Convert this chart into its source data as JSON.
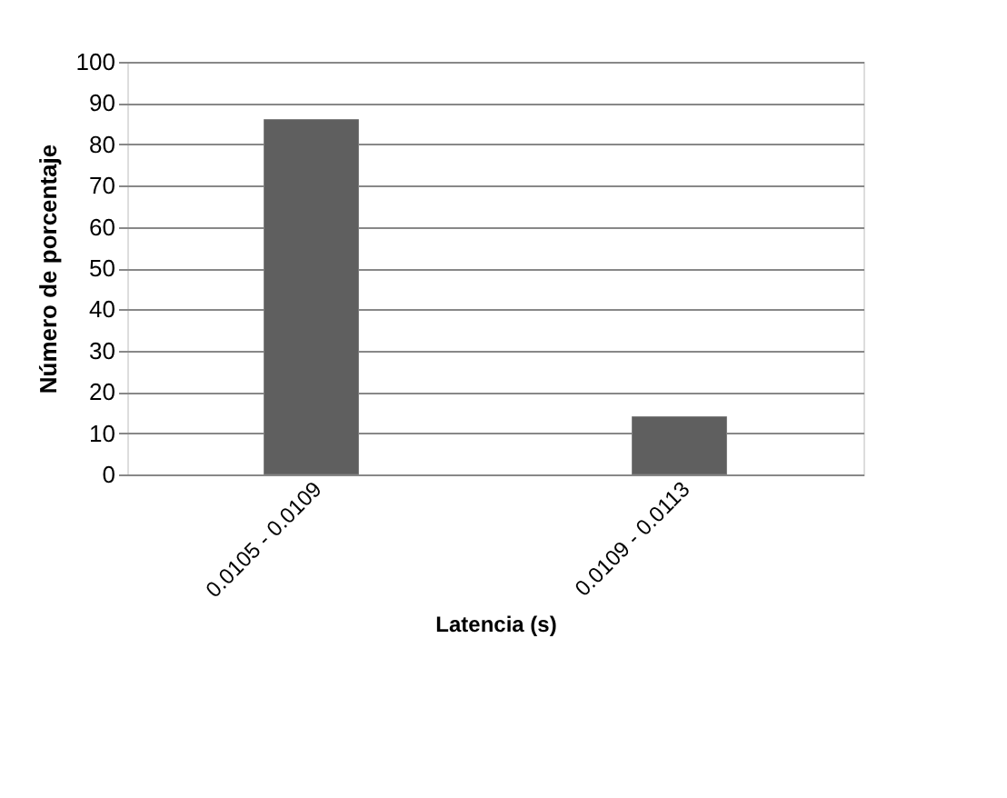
{
  "chart_data": {
    "type": "bar",
    "xlabel": "Latencia (s)",
    "ylabel": "Número  de  porcentaje",
    "categories": [
      "0.0105 - 0.0109",
      "0.0109 - 0.0113"
    ],
    "values": [
      86,
      14
    ],
    "color": "#5f5f5f",
    "ylim": [
      0,
      100
    ],
    "yticks": [
      0,
      10,
      20,
      30,
      40,
      50,
      60,
      70,
      80,
      90,
      100
    ],
    "grid": "y"
  }
}
